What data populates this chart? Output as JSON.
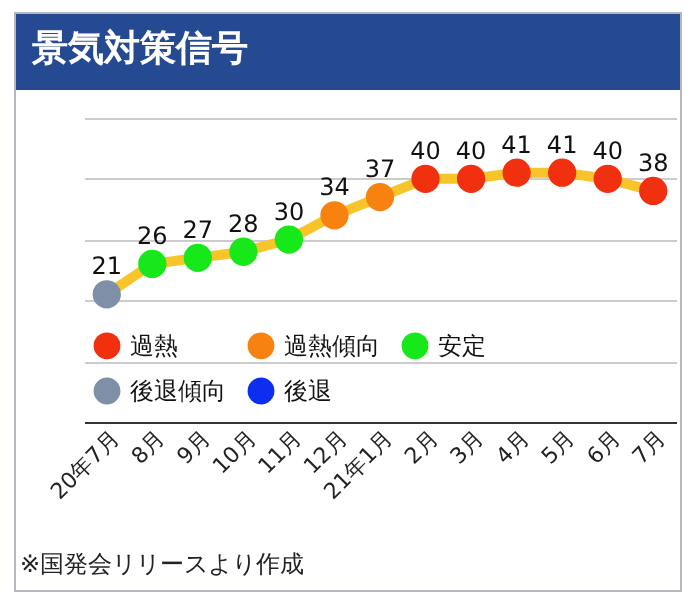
{
  "chart_data": {
    "type": "line",
    "title": "景気対策信号",
    "categories": [
      "20年7月",
      "8月",
      "9月",
      "10月",
      "11月",
      "12月",
      "21年1月",
      "2月",
      "3月",
      "4月",
      "5月",
      "6月",
      "7月"
    ],
    "series": [
      {
        "color": "#f7c52a",
        "values": [
          21,
          26,
          27,
          28,
          30,
          34,
          37,
          40,
          40,
          41,
          41,
          40,
          38
        ],
        "value_labels": [
          "21",
          "26",
          "27",
          "28",
          "30",
          "34",
          "37",
          "40",
          "40",
          "41",
          "41",
          "40",
          "38"
        ]
      },
      {
        "type": "scatter",
        "name": "過熱",
        "color": "#f0300e",
        "values": [
          null,
          null,
          null,
          null,
          null,
          null,
          null,
          40,
          40,
          41,
          41,
          40,
          38
        ]
      },
      {
        "type": "scatter",
        "name": "過熱傾向",
        "color": "#f7820f",
        "values": [
          null,
          null,
          null,
          null,
          null,
          34,
          37,
          null,
          null,
          null,
          null,
          null,
          null
        ]
      },
      {
        "type": "scatter",
        "name": "安定",
        "color": "#16e81a",
        "values": [
          null,
          26,
          27,
          28,
          30,
          null,
          null,
          null,
          null,
          null,
          null,
          null,
          null
        ]
      },
      {
        "type": "scatter",
        "name": "後退傾向",
        "color": "#7f8fa8",
        "values": [
          21,
          null,
          null,
          null,
          null,
          null,
          null,
          null,
          null,
          null,
          null,
          null,
          null
        ]
      },
      {
        "type": "scatter",
        "name": "後退",
        "color": "#0b2ef0",
        "values": [
          null,
          null,
          null,
          null,
          null,
          null,
          null,
          null,
          null,
          null,
          null,
          null,
          null
        ]
      }
    ],
    "ylim": [
      0,
      50
    ],
    "yticks": [
      {
        "value": 0,
        "label": null
      },
      {
        "value": 10,
        "label": null
      },
      {
        "value": 20,
        "label": null
      },
      {
        "value": 30,
        "label": null
      },
      {
        "value": 40,
        "label": null
      },
      {
        "value": 50,
        "label": null
      }
    ],
    "grid": "y",
    "tick_labels": "x",
    "legend": "bottom left",
    "annotations": [
      "※国発会リリースより作成"
    ]
  }
}
